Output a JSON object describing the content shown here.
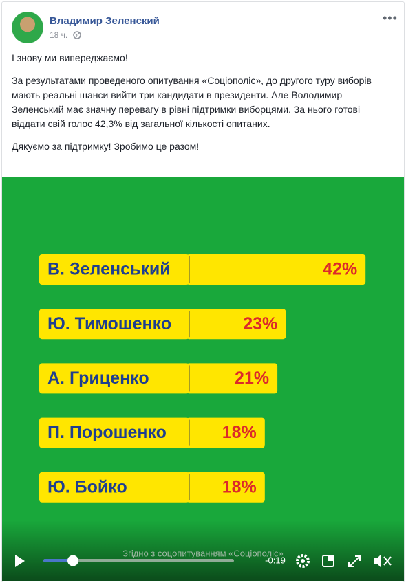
{
  "post": {
    "author": "Владимир Зеленский",
    "time": "18 ч.",
    "paragraphs": [
      "І знову ми випереджаємо!",
      "За результатами проведеного опитування «Соціополіс», до другого туру виборів мають реальні шанси вийти три кандидати в президенти. Але Володимир Зеленський має значну перевагу в рівні підтримки виборцями. За нього готові віддати свій голос 42,3% від загальної кількості опитаних.",
      "Дякуємо за підтримку! Зробимо це разом!"
    ]
  },
  "chart_data": {
    "type": "bar",
    "categories": [
      "В. Зеленський",
      "Ю. Тимошенко",
      "А. Гриценко",
      "П. Порошенко",
      "Ю. Бойко"
    ],
    "values": [
      42,
      23,
      21,
      18,
      18
    ],
    "value_labels": [
      "42%",
      "23%",
      "21%",
      "18%",
      "18%"
    ],
    "color": "#ffe600"
  },
  "video": {
    "caption": "Згідно з соцопитуванням «Соціополіс»",
    "time": "-0:19"
  }
}
